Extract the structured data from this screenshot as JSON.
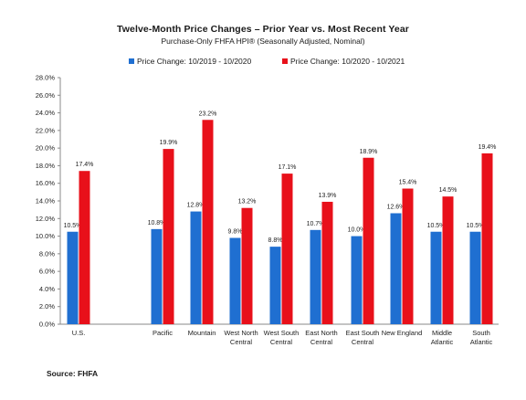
{
  "colors": {
    "series1": "#1f6fd1",
    "series2": "#e8101a",
    "axis": "#8a8a8a"
  },
  "chart_data": {
    "type": "bar",
    "title": "Twelve-Month Price Changes – Prior Year vs. Most Recent Year",
    "subtitle": "Purchase-Only FHFA HPI® (Seasonally Adjusted, Nominal)",
    "categories": [
      "U.S.",
      "Pacific",
      "Mountain",
      "West North Central",
      "West South Central",
      "East North Central",
      "East South Central",
      "New England",
      "Middle Atlantic",
      "South Atlantic"
    ],
    "category_lines": [
      [
        "U.S."
      ],
      [
        "Pacific"
      ],
      [
        "Mountain"
      ],
      [
        "West North",
        "Central"
      ],
      [
        "West South",
        "Central"
      ],
      [
        "East North",
        "Central"
      ],
      [
        "East South",
        "Central"
      ],
      [
        "New England"
      ],
      [
        "Middle",
        "Atlantic"
      ],
      [
        "South",
        "Atlantic"
      ]
    ],
    "series": [
      {
        "name": "Price Change:  10/2019 - 10/2020",
        "values": [
          10.5,
          10.8,
          12.8,
          9.8,
          8.8,
          10.7,
          10.0,
          12.6,
          10.5,
          10.5
        ],
        "labels": [
          "10.5%",
          "10.8%",
          "12.8%",
          "9.8%",
          "8.8%",
          "10.7%",
          "10.0%",
          "12.6%",
          "10.5%",
          "10.5%"
        ]
      },
      {
        "name": "Price Change:  10/2020 - 10/2021",
        "values": [
          17.4,
          19.9,
          23.2,
          13.2,
          17.1,
          13.9,
          18.9,
          15.4,
          14.5,
          19.4
        ],
        "labels": [
          "17.4%",
          "19.9%",
          "23.2%",
          "13.2%",
          "17.1%",
          "13.9%",
          "18.9%",
          "15.4%",
          "14.5%",
          "19.4%"
        ]
      }
    ],
    "yticks": [
      "0.0%",
      "2.0%",
      "4.0%",
      "6.0%",
      "8.0%",
      "10.0%",
      "12.0%",
      "14.0%",
      "16.0%",
      "18.0%",
      "20.0%",
      "22.0%",
      "24.0%",
      "26.0%",
      "28.0%"
    ],
    "ylim": [
      0,
      28
    ],
    "ystep": 2,
    "legend_position": "top",
    "grid": false,
    "source": "Source: FHFA"
  }
}
